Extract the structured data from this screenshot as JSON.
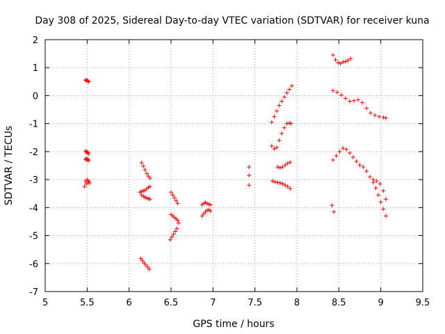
{
  "chart_data": {
    "type": "scatter",
    "title": "Day 308 of 2025, Sidereal Day-to-day VTEC variation (SDTVAR) for receiver kuna",
    "xlabel": "GPS time / hours",
    "ylabel": "SDTVAR / TECUs",
    "xlim": [
      5,
      9.5
    ],
    "ylim": [
      -7,
      2
    ],
    "xticks": [
      5,
      5.5,
      6,
      6.5,
      7,
      7.5,
      8,
      8.5,
      9,
      9.5
    ],
    "xtick_labels": [
      "5",
      "5.5",
      "6",
      "6.5",
      "7",
      "7.5",
      "8",
      "8.5",
      "9",
      "9.5"
    ],
    "yticks": [
      -7,
      -6,
      -5,
      -4,
      -3,
      -2,
      -1,
      0,
      1,
      2
    ],
    "ytick_labels": [
      "-7",
      "-6",
      "-5",
      "-4",
      "-3",
      "-2",
      "-1",
      "0",
      "1",
      "2"
    ],
    "grid": true,
    "marker": "plus",
    "color": "#ff0000",
    "series": [
      {
        "name": "s01",
        "x": [
          5.48,
          5.49,
          5.5,
          5.51,
          5.52
        ],
        "y": [
          0.56,
          0.54,
          0.55,
          0.52,
          0.5
        ]
      },
      {
        "name": "s02",
        "x": [
          5.48,
          5.49,
          5.5,
          5.51,
          5.52
        ],
        "y": [
          -1.98,
          -2.0,
          -2.05,
          -2.02,
          -2.08
        ]
      },
      {
        "name": "s03",
        "x": [
          5.48,
          5.49,
          5.5,
          5.51,
          5.52
        ],
        "y": [
          -2.28,
          -2.25,
          -2.3,
          -2.27,
          -2.32
        ]
      },
      {
        "name": "s04",
        "x": [
          5.47,
          5.48,
          5.49,
          5.5,
          5.51,
          5.52,
          5.53
        ],
        "y": [
          -3.25,
          -3.05,
          -3.15,
          -3.0,
          -3.1,
          -3.05,
          -3.12
        ]
      },
      {
        "name": "s05",
        "x": [
          6.15,
          6.17,
          6.19,
          6.21,
          6.23,
          6.25
        ],
        "y": [
          -2.4,
          -2.52,
          -2.65,
          -2.78,
          -2.88,
          -2.95
        ]
      },
      {
        "name": "s06",
        "x": [
          6.13,
          6.15,
          6.17,
          6.19,
          6.21,
          6.23,
          6.25
        ],
        "y": [
          -3.45,
          -3.42,
          -3.4,
          -3.38,
          -3.33,
          -3.28,
          -3.25
        ]
      },
      {
        "name": "s07",
        "x": [
          6.15,
          6.17,
          6.19,
          6.21,
          6.23,
          6.25
        ],
        "y": [
          -3.55,
          -3.6,
          -3.63,
          -3.66,
          -3.68,
          -3.7
        ]
      },
      {
        "name": "s08",
        "x": [
          6.14,
          6.16,
          6.18,
          6.2,
          6.22,
          6.24
        ],
        "y": [
          -5.82,
          -5.9,
          -5.98,
          -6.05,
          -6.12,
          -6.2
        ]
      },
      {
        "name": "s09",
        "x": [
          6.5,
          6.52,
          6.54,
          6.56,
          6.58
        ],
        "y": [
          -3.45,
          -3.55,
          -3.65,
          -3.75,
          -3.85
        ]
      },
      {
        "name": "s10",
        "x": [
          6.5,
          6.52,
          6.54,
          6.56,
          6.58
        ],
        "y": [
          -4.25,
          -4.3,
          -4.35,
          -4.4,
          -4.45
        ]
      },
      {
        "name": "s11",
        "x": [
          6.49,
          6.51,
          6.53,
          6.55,
          6.57,
          6.59
        ],
        "y": [
          -5.15,
          -5.05,
          -4.95,
          -4.85,
          -4.75,
          -4.55
        ]
      },
      {
        "name": "s12",
        "x": [
          6.87,
          6.89,
          6.91,
          6.93,
          6.95,
          6.97
        ],
        "y": [
          -3.9,
          -3.85,
          -3.82,
          -3.85,
          -3.88,
          -3.9
        ]
      },
      {
        "name": "s13",
        "x": [
          6.87,
          6.89,
          6.91,
          6.93,
          6.95,
          6.97
        ],
        "y": [
          -4.3,
          -4.22,
          -4.15,
          -4.1,
          -4.08,
          -4.12
        ]
      },
      {
        "name": "s14",
        "x": [
          7.43,
          7.43,
          7.43
        ],
        "y": [
          -2.55,
          -2.85,
          -3.2
        ]
      },
      {
        "name": "s15",
        "x": [
          7.7,
          7.73,
          7.76,
          7.79,
          7.82,
          7.85,
          7.88,
          7.91,
          7.94
        ],
        "y": [
          -0.95,
          -0.75,
          -0.55,
          -0.35,
          -0.2,
          -0.05,
          0.1,
          0.22,
          0.35
        ]
      },
      {
        "name": "s16",
        "x": [
          7.7,
          7.73,
          7.76,
          7.79,
          7.82,
          7.85,
          7.88,
          7.91,
          7.93
        ],
        "y": [
          -1.8,
          -1.9,
          -1.85,
          -1.6,
          -1.35,
          -1.15,
          -1.0,
          -0.98,
          -1.0
        ]
      },
      {
        "name": "s17",
        "x": [
          7.77,
          7.8,
          7.83,
          7.86,
          7.89,
          7.92
        ],
        "y": [
          -2.55,
          -2.58,
          -2.55,
          -2.48,
          -2.42,
          -2.38
        ]
      },
      {
        "name": "s18",
        "x": [
          7.71,
          7.74,
          7.77,
          7.8,
          7.83,
          7.86,
          7.89,
          7.92
        ],
        "y": [
          -3.05,
          -3.08,
          -3.1,
          -3.12,
          -3.15,
          -3.2,
          -3.25,
          -3.32
        ]
      },
      {
        "name": "s19",
        "x": [
          8.43,
          8.46,
          8.49,
          8.52,
          8.55,
          8.58,
          8.61,
          8.64
        ],
        "y": [
          1.45,
          1.28,
          1.18,
          1.15,
          1.2,
          1.22,
          1.26,
          1.32
        ]
      },
      {
        "name": "s20",
        "x": [
          8.43,
          8.48,
          8.53,
          8.58,
          8.63,
          8.68,
          8.73,
          8.78,
          8.83,
          8.88,
          8.93,
          8.98,
          9.03,
          9.06
        ],
        "y": [
          0.18,
          0.12,
          0.02,
          -0.1,
          -0.2,
          -0.18,
          -0.15,
          -0.25,
          -0.45,
          -0.62,
          -0.7,
          -0.75,
          -0.78,
          -0.8
        ]
      },
      {
        "name": "s21",
        "x": [
          8.43,
          8.47,
          8.51,
          8.55,
          8.59,
          8.63,
          8.67,
          8.71,
          8.75,
          8.79,
          8.83,
          8.87,
          8.91,
          8.95,
          8.99,
          9.03,
          9.06
        ],
        "y": [
          -2.3,
          -2.15,
          -2.0,
          -1.88,
          -1.92,
          -2.05,
          -2.2,
          -2.35,
          -2.48,
          -2.55,
          -2.7,
          -2.9,
          -3.0,
          -3.05,
          -3.15,
          -3.4,
          -3.7
        ]
      },
      {
        "name": "s22",
        "x": [
          8.91,
          8.94,
          8.97,
          9.0,
          9.03,
          9.06
        ],
        "y": [
          -3.1,
          -3.3,
          -3.55,
          -3.8,
          -4.05,
          -4.3
        ]
      },
      {
        "name": "s23",
        "x": [
          8.42,
          8.44
        ],
        "y": [
          -3.92,
          -4.15
        ]
      }
    ]
  }
}
